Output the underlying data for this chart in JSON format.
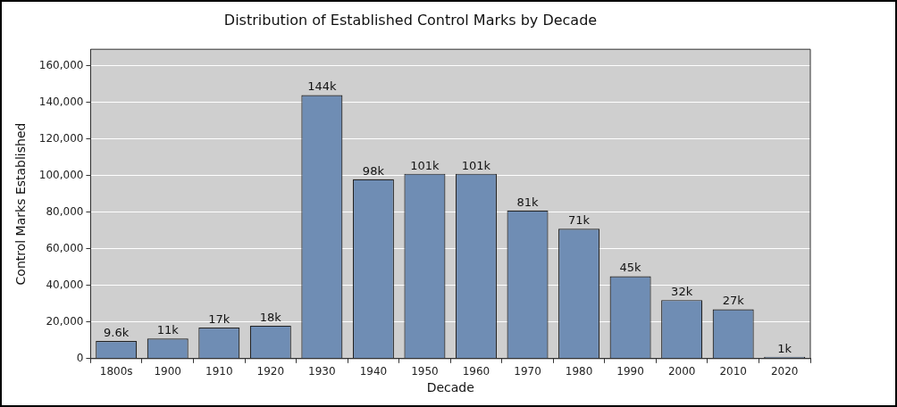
{
  "chart_data": {
    "type": "bar",
    "title": "Distribution of Established Control Marks by Decade",
    "xlabel": "Decade",
    "ylabel": "Control Marks Established",
    "categories": [
      "1800s",
      "1900",
      "1910",
      "1920",
      "1930",
      "1940",
      "1950",
      "1960",
      "1970",
      "1980",
      "1990",
      "2000",
      "2010",
      "2020"
    ],
    "values": [
      9600,
      11000,
      17000,
      18000,
      144000,
      98000,
      101000,
      101000,
      81000,
      71000,
      45000,
      32000,
      27000,
      1000
    ],
    "value_labels": [
      "9.6k",
      "11k",
      "17k",
      "18k",
      "144k",
      "98k",
      "101k",
      "101k",
      "81k",
      "71k",
      "45k",
      "32k",
      "27k",
      "1k"
    ],
    "color": "#6f8db4",
    "ylim": [
      0,
      169000
    ],
    "yticks": [
      {
        "value": 0,
        "label": "0"
      },
      {
        "value": 20000,
        "label": "20,000"
      },
      {
        "value": 40000,
        "label": "40,000"
      },
      {
        "value": 60000,
        "label": "60,000"
      },
      {
        "value": 80000,
        "label": "80,000"
      },
      {
        "value": 100000,
        "label": "100,000"
      },
      {
        "value": 120000,
        "label": "120,000"
      },
      {
        "value": 140000,
        "label": "140,000"
      },
      {
        "value": 160000,
        "label": "160,000"
      }
    ],
    "grid": "y"
  }
}
